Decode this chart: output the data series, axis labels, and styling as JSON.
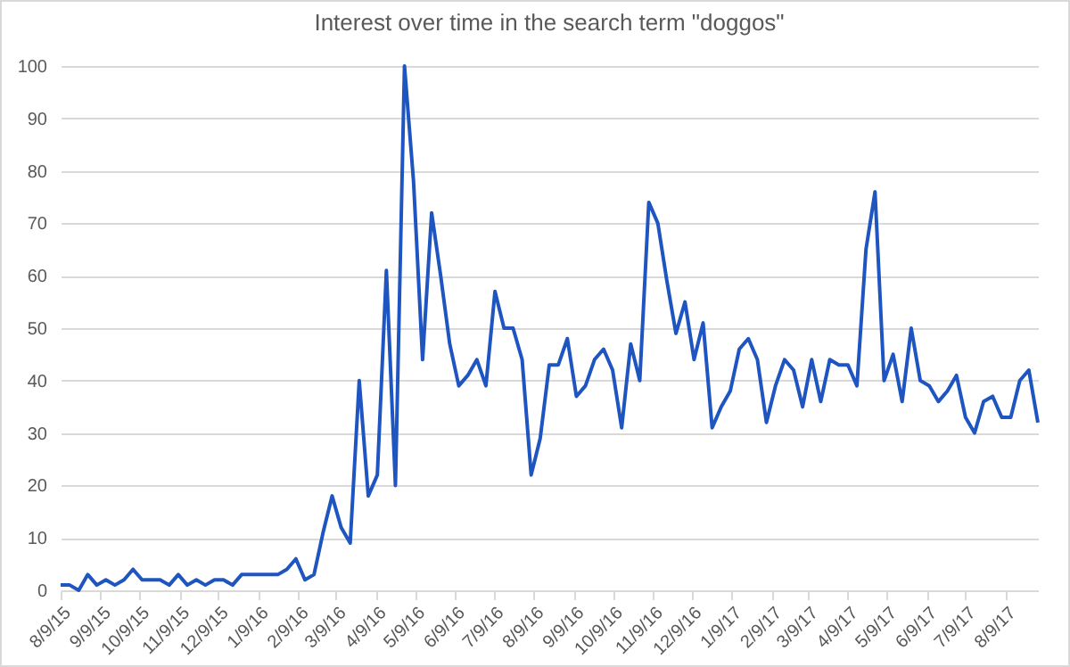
{
  "chart_data": {
    "type": "line",
    "title": "Interest over time in the search term \"doggos\"",
    "x": [
      "2015-08-09",
      "2015-08-16",
      "2015-08-23",
      "2015-08-30",
      "2015-09-06",
      "2015-09-13",
      "2015-09-20",
      "2015-09-27",
      "2015-10-04",
      "2015-10-11",
      "2015-10-18",
      "2015-10-25",
      "2015-11-01",
      "2015-11-08",
      "2015-11-15",
      "2015-11-22",
      "2015-11-29",
      "2015-12-06",
      "2015-12-13",
      "2015-12-20",
      "2015-12-27",
      "2016-01-03",
      "2016-01-10",
      "2016-01-17",
      "2016-01-24",
      "2016-01-31",
      "2016-02-07",
      "2016-02-14",
      "2016-02-21",
      "2016-02-28",
      "2016-03-06",
      "2016-03-13",
      "2016-03-20",
      "2016-03-27",
      "2016-04-03",
      "2016-04-10",
      "2016-04-17",
      "2016-04-24",
      "2016-05-01",
      "2016-05-08",
      "2016-05-15",
      "2016-05-22",
      "2016-05-29",
      "2016-06-05",
      "2016-06-12",
      "2016-06-19",
      "2016-06-26",
      "2016-07-03",
      "2016-07-10",
      "2016-07-17",
      "2016-07-24",
      "2016-07-31",
      "2016-08-07",
      "2016-08-14",
      "2016-08-21",
      "2016-08-28",
      "2016-09-04",
      "2016-09-11",
      "2016-09-18",
      "2016-09-25",
      "2016-10-02",
      "2016-10-09",
      "2016-10-16",
      "2016-10-23",
      "2016-10-30",
      "2016-11-06",
      "2016-11-13",
      "2016-11-20",
      "2016-11-27",
      "2016-12-04",
      "2016-12-11",
      "2016-12-18",
      "2016-12-25",
      "2017-01-01",
      "2017-01-08",
      "2017-01-15",
      "2017-01-22",
      "2017-01-29",
      "2017-02-05",
      "2017-02-12",
      "2017-02-19",
      "2017-02-26",
      "2017-03-05",
      "2017-03-12",
      "2017-03-19",
      "2017-03-26",
      "2017-04-02",
      "2017-04-09",
      "2017-04-16",
      "2017-04-23",
      "2017-04-30",
      "2017-05-07",
      "2017-05-14",
      "2017-05-21",
      "2017-05-28",
      "2017-06-04",
      "2017-06-11",
      "2017-06-18",
      "2017-06-25",
      "2017-07-02",
      "2017-07-09",
      "2017-07-16",
      "2017-07-23",
      "2017-07-30",
      "2017-08-06",
      "2017-08-13",
      "2017-08-20",
      "2017-08-27",
      "2017-09-03"
    ],
    "series": [
      {
        "color": "#1f55c0",
        "values": [
          1,
          1,
          0,
          3,
          1,
          2,
          1,
          2,
          4,
          2,
          2,
          2,
          1,
          3,
          1,
          2,
          1,
          2,
          2,
          1,
          3,
          3,
          3,
          3,
          3,
          4,
          6,
          2,
          3,
          11,
          18,
          12,
          9,
          40,
          18,
          22,
          61,
          20,
          100,
          78,
          44,
          72,
          60,
          47,
          39,
          41,
          44,
          39,
          57,
          50,
          50,
          44,
          22,
          29,
          43,
          43,
          48,
          37,
          39,
          44,
          46,
          42,
          31,
          47,
          40,
          74,
          70,
          59,
          49,
          55,
          44,
          51,
          31,
          35,
          38,
          46,
          48,
          44,
          32,
          39,
          44,
          42,
          35,
          44,
          36,
          44,
          43,
          43,
          39,
          65,
          76,
          40,
          45,
          36,
          50,
          40,
          39,
          36,
          38,
          41,
          33,
          30,
          36,
          37,
          33,
          33,
          40,
          42,
          32
        ]
      }
    ],
    "xlim": [
      "2015-08-09",
      "2017-09-03"
    ],
    "xticks": [
      {
        "value": "2015-08-09",
        "label": "8/9/15"
      },
      {
        "value": "2015-09-09",
        "label": "9/9/15"
      },
      {
        "value": "2015-10-09",
        "label": "10/9/15"
      },
      {
        "value": "2015-11-09",
        "label": "11/9/15"
      },
      {
        "value": "2015-12-09",
        "label": "12/9/15"
      },
      {
        "value": "2016-01-09",
        "label": "1/9/16"
      },
      {
        "value": "2016-02-09",
        "label": "2/9/16"
      },
      {
        "value": "2016-03-09",
        "label": "3/9/16"
      },
      {
        "value": "2016-04-09",
        "label": "4/9/16"
      },
      {
        "value": "2016-05-09",
        "label": "5/9/16"
      },
      {
        "value": "2016-06-09",
        "label": "6/9/16"
      },
      {
        "value": "2016-07-09",
        "label": "7/9/16"
      },
      {
        "value": "2016-08-09",
        "label": "8/9/16"
      },
      {
        "value": "2016-09-09",
        "label": "9/9/16"
      },
      {
        "value": "2016-10-09",
        "label": "10/9/16"
      },
      {
        "value": "2016-11-09",
        "label": "11/9/16"
      },
      {
        "value": "2016-12-09",
        "label": "12/9/16"
      },
      {
        "value": "2017-01-09",
        "label": "1/9/17"
      },
      {
        "value": "2017-02-09",
        "label": "2/9/17"
      },
      {
        "value": "2017-03-09",
        "label": "3/9/17"
      },
      {
        "value": "2017-04-09",
        "label": "4/9/17"
      },
      {
        "value": "2017-05-09",
        "label": "5/9/17"
      },
      {
        "value": "2017-06-09",
        "label": "6/9/17"
      },
      {
        "value": "2017-07-09",
        "label": "7/9/17"
      },
      {
        "value": "2017-08-09",
        "label": "8/9/17"
      }
    ],
    "ylim": [
      0,
      100
    ],
    "yticks": [
      0,
      10,
      20,
      30,
      40,
      50,
      60,
      70,
      80,
      90,
      100
    ],
    "grid": "y",
    "marker": "none",
    "line_style": "solid"
  }
}
